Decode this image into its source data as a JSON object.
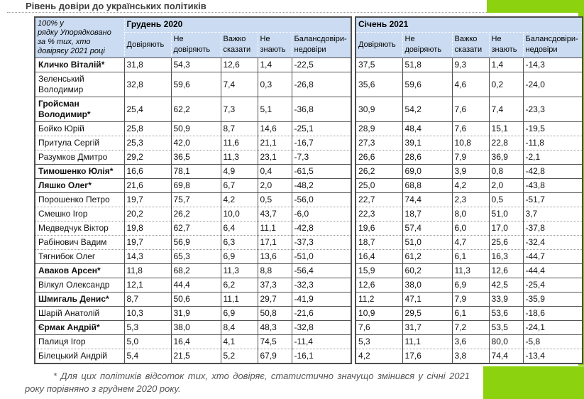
{
  "colors": {
    "accent_green": "#8cd20e",
    "header_blue": "#cbdcf2"
  },
  "chart_data": {
    "type": "table",
    "title": "Рівень довіри до українських політиків",
    "corner_note": "100% у\nрядку Упорядковано\nза % тих, хто\nдовіряєу 2021 році",
    "period_headers": [
      "Грудень 2020",
      "Січень 2021"
    ],
    "columns": [
      "Довіряють",
      "Не довіряють",
      "Важко сказати",
      "Не знають",
      "Балансдовіри-недовіри"
    ],
    "rows": [
      {
        "name": "Кличко Віталій*",
        "significant": true,
        "dec_2020": [
          31.8,
          54.3,
          12.6,
          1.4,
          -22.5
        ],
        "jan_2021": [
          37.5,
          51.8,
          9.3,
          1.4,
          -14.3
        ]
      },
      {
        "name": "Зеленський Володимир",
        "significant": false,
        "dec_2020": [
          32.8,
          59.6,
          7.4,
          0.3,
          -26.8
        ],
        "jan_2021": [
          35.6,
          59.6,
          4.6,
          0.2,
          -24.0
        ]
      },
      {
        "name": "Гройсман Володимир*",
        "significant": true,
        "dec_2020": [
          25.4,
          62.2,
          7.3,
          5.1,
          -36.8
        ],
        "jan_2021": [
          30.9,
          54.2,
          7.6,
          7.4,
          -23.3
        ]
      },
      {
        "name": "Бойко Юрій",
        "significant": false,
        "dec_2020": [
          25.8,
          50.9,
          8.7,
          14.6,
          -25.1
        ],
        "jan_2021": [
          28.9,
          48.4,
          7.6,
          15.1,
          -19.5
        ]
      },
      {
        "name": "Притула Сергій",
        "significant": false,
        "dec_2020": [
          25.3,
          42.0,
          11.6,
          21.1,
          -16.7
        ],
        "jan_2021": [
          27.3,
          39.1,
          10.8,
          22.8,
          -11.8
        ]
      },
      {
        "name": "Разумков Дмитро",
        "significant": false,
        "dec_2020": [
          29.2,
          36.5,
          11.3,
          23.1,
          -7.3
        ],
        "jan_2021": [
          26.6,
          28.6,
          7.9,
          36.9,
          -2.1
        ]
      },
      {
        "name": "Тимошенко Юлія*",
        "significant": true,
        "dec_2020": [
          16.6,
          78.1,
          4.9,
          0.4,
          -61.5
        ],
        "jan_2021": [
          26.2,
          69.0,
          3.9,
          0.8,
          -42.8
        ]
      },
      {
        "name": "Ляшко Олег*",
        "significant": true,
        "dec_2020": [
          21.6,
          69.8,
          6.7,
          2.0,
          -48.2
        ],
        "jan_2021": [
          25.0,
          68.8,
          4.2,
          2.0,
          -43.8
        ]
      },
      {
        "name": "Порошенко Петро",
        "significant": false,
        "dec_2020": [
          19.7,
          75.7,
          4.2,
          0.5,
          -56.0
        ],
        "jan_2021": [
          22.7,
          74.4,
          2.3,
          0.5,
          -51.7
        ]
      },
      {
        "name": "Смешко Ігор",
        "significant": false,
        "dec_2020": [
          20.2,
          26.2,
          10.0,
          43.7,
          -6.0
        ],
        "jan_2021": [
          22.3,
          18.7,
          8.0,
          51.0,
          3.7
        ]
      },
      {
        "name": "Медведчук Віктор",
        "significant": false,
        "dec_2020": [
          19.8,
          62.7,
          6.4,
          11.1,
          -42.8
        ],
        "jan_2021": [
          19.6,
          57.4,
          6.0,
          17.0,
          -37.8
        ]
      },
      {
        "name": "Рабінович Вадим",
        "significant": false,
        "dec_2020": [
          19.7,
          56.9,
          6.3,
          17.1,
          -37.3
        ],
        "jan_2021": [
          18.7,
          51.0,
          4.7,
          25.6,
          -32.4
        ]
      },
      {
        "name": "Тягнибок Олег",
        "significant": false,
        "dec_2020": [
          14.3,
          65.3,
          6.9,
          13.6,
          -51.0
        ],
        "jan_2021": [
          16.4,
          61.2,
          6.1,
          16.3,
          -44.7
        ]
      },
      {
        "name": "Аваков Арсен*",
        "significant": true,
        "dec_2020": [
          11.8,
          68.2,
          11.3,
          8.8,
          -56.4
        ],
        "jan_2021": [
          15.9,
          60.2,
          11.3,
          12.6,
          -44.4
        ]
      },
      {
        "name": "Вілкул Олександр",
        "significant": false,
        "dec_2020": [
          12.1,
          44.4,
          6.2,
          37.3,
          -32.3
        ],
        "jan_2021": [
          12.6,
          38.0,
          6.9,
          42.5,
          -25.4
        ]
      },
      {
        "name": "Шмигаль Денис*",
        "significant": true,
        "dec_2020": [
          8.7,
          50.6,
          11.1,
          29.7,
          -41.9
        ],
        "jan_2021": [
          11.2,
          47.1,
          7.9,
          33.9,
          -35.9
        ]
      },
      {
        "name": "Шарій Анатолій",
        "significant": false,
        "dec_2020": [
          10.3,
          31.9,
          6.9,
          50.8,
          -21.6
        ],
        "jan_2021": [
          10.9,
          29.5,
          6.1,
          53.6,
          -18.6
        ]
      },
      {
        "name": "Єрмак Андрій*",
        "significant": true,
        "dec_2020": [
          5.3,
          38.0,
          8.4,
          48.3,
          -32.8
        ],
        "jan_2021": [
          7.6,
          31.7,
          7.2,
          53.5,
          -24.1
        ]
      },
      {
        "name": "Палиця Ігор",
        "significant": false,
        "dec_2020": [
          5.0,
          16.4,
          4.1,
          74.5,
          -11.4
        ],
        "jan_2021": [
          5.3,
          11.1,
          3.6,
          80.0,
          -5.8
        ]
      },
      {
        "name": "Білецький Андрій",
        "significant": false,
        "dec_2020": [
          5.4,
          21.5,
          5.2,
          67.9,
          -16.1
        ],
        "jan_2021": [
          4.2,
          17.6,
          3.8,
          74.4,
          -13.4
        ]
      }
    ],
    "footnote": "* Для цих політиків відсоток тих, хто довіряє, статистично значущо змінився у січні 2021 року порівняно з груднем 2020 року."
  }
}
